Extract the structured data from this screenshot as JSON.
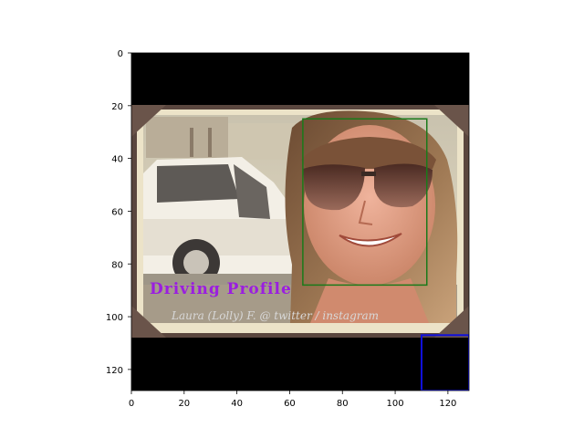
{
  "image": {
    "rows": 128,
    "cols": 128,
    "overlay_title": "Driving Profile",
    "overlay_caption": "Laura (Lolly) F. @ twitter / instagram",
    "colors": {
      "letterbox": "#000000",
      "face_box": "#1a7a1a",
      "region_box": "#1010dd",
      "frame_border": "#5a463e",
      "card_bg": "#ece3c8"
    }
  },
  "axes": {
    "x_ticks": [
      "0",
      "20",
      "40",
      "60",
      "80",
      "100",
      "120"
    ],
    "y_ticks": [
      "0",
      "20",
      "40",
      "60",
      "80",
      "100",
      "120"
    ]
  },
  "annotations": [
    {
      "name": "face",
      "x0": 65,
      "y0": 25,
      "x1": 112,
      "y1": 88,
      "color": "#1a7a1a"
    },
    {
      "name": "region",
      "x0": 110,
      "y0": 107,
      "x1": 128,
      "y1": 128,
      "color": "#1010dd"
    }
  ]
}
